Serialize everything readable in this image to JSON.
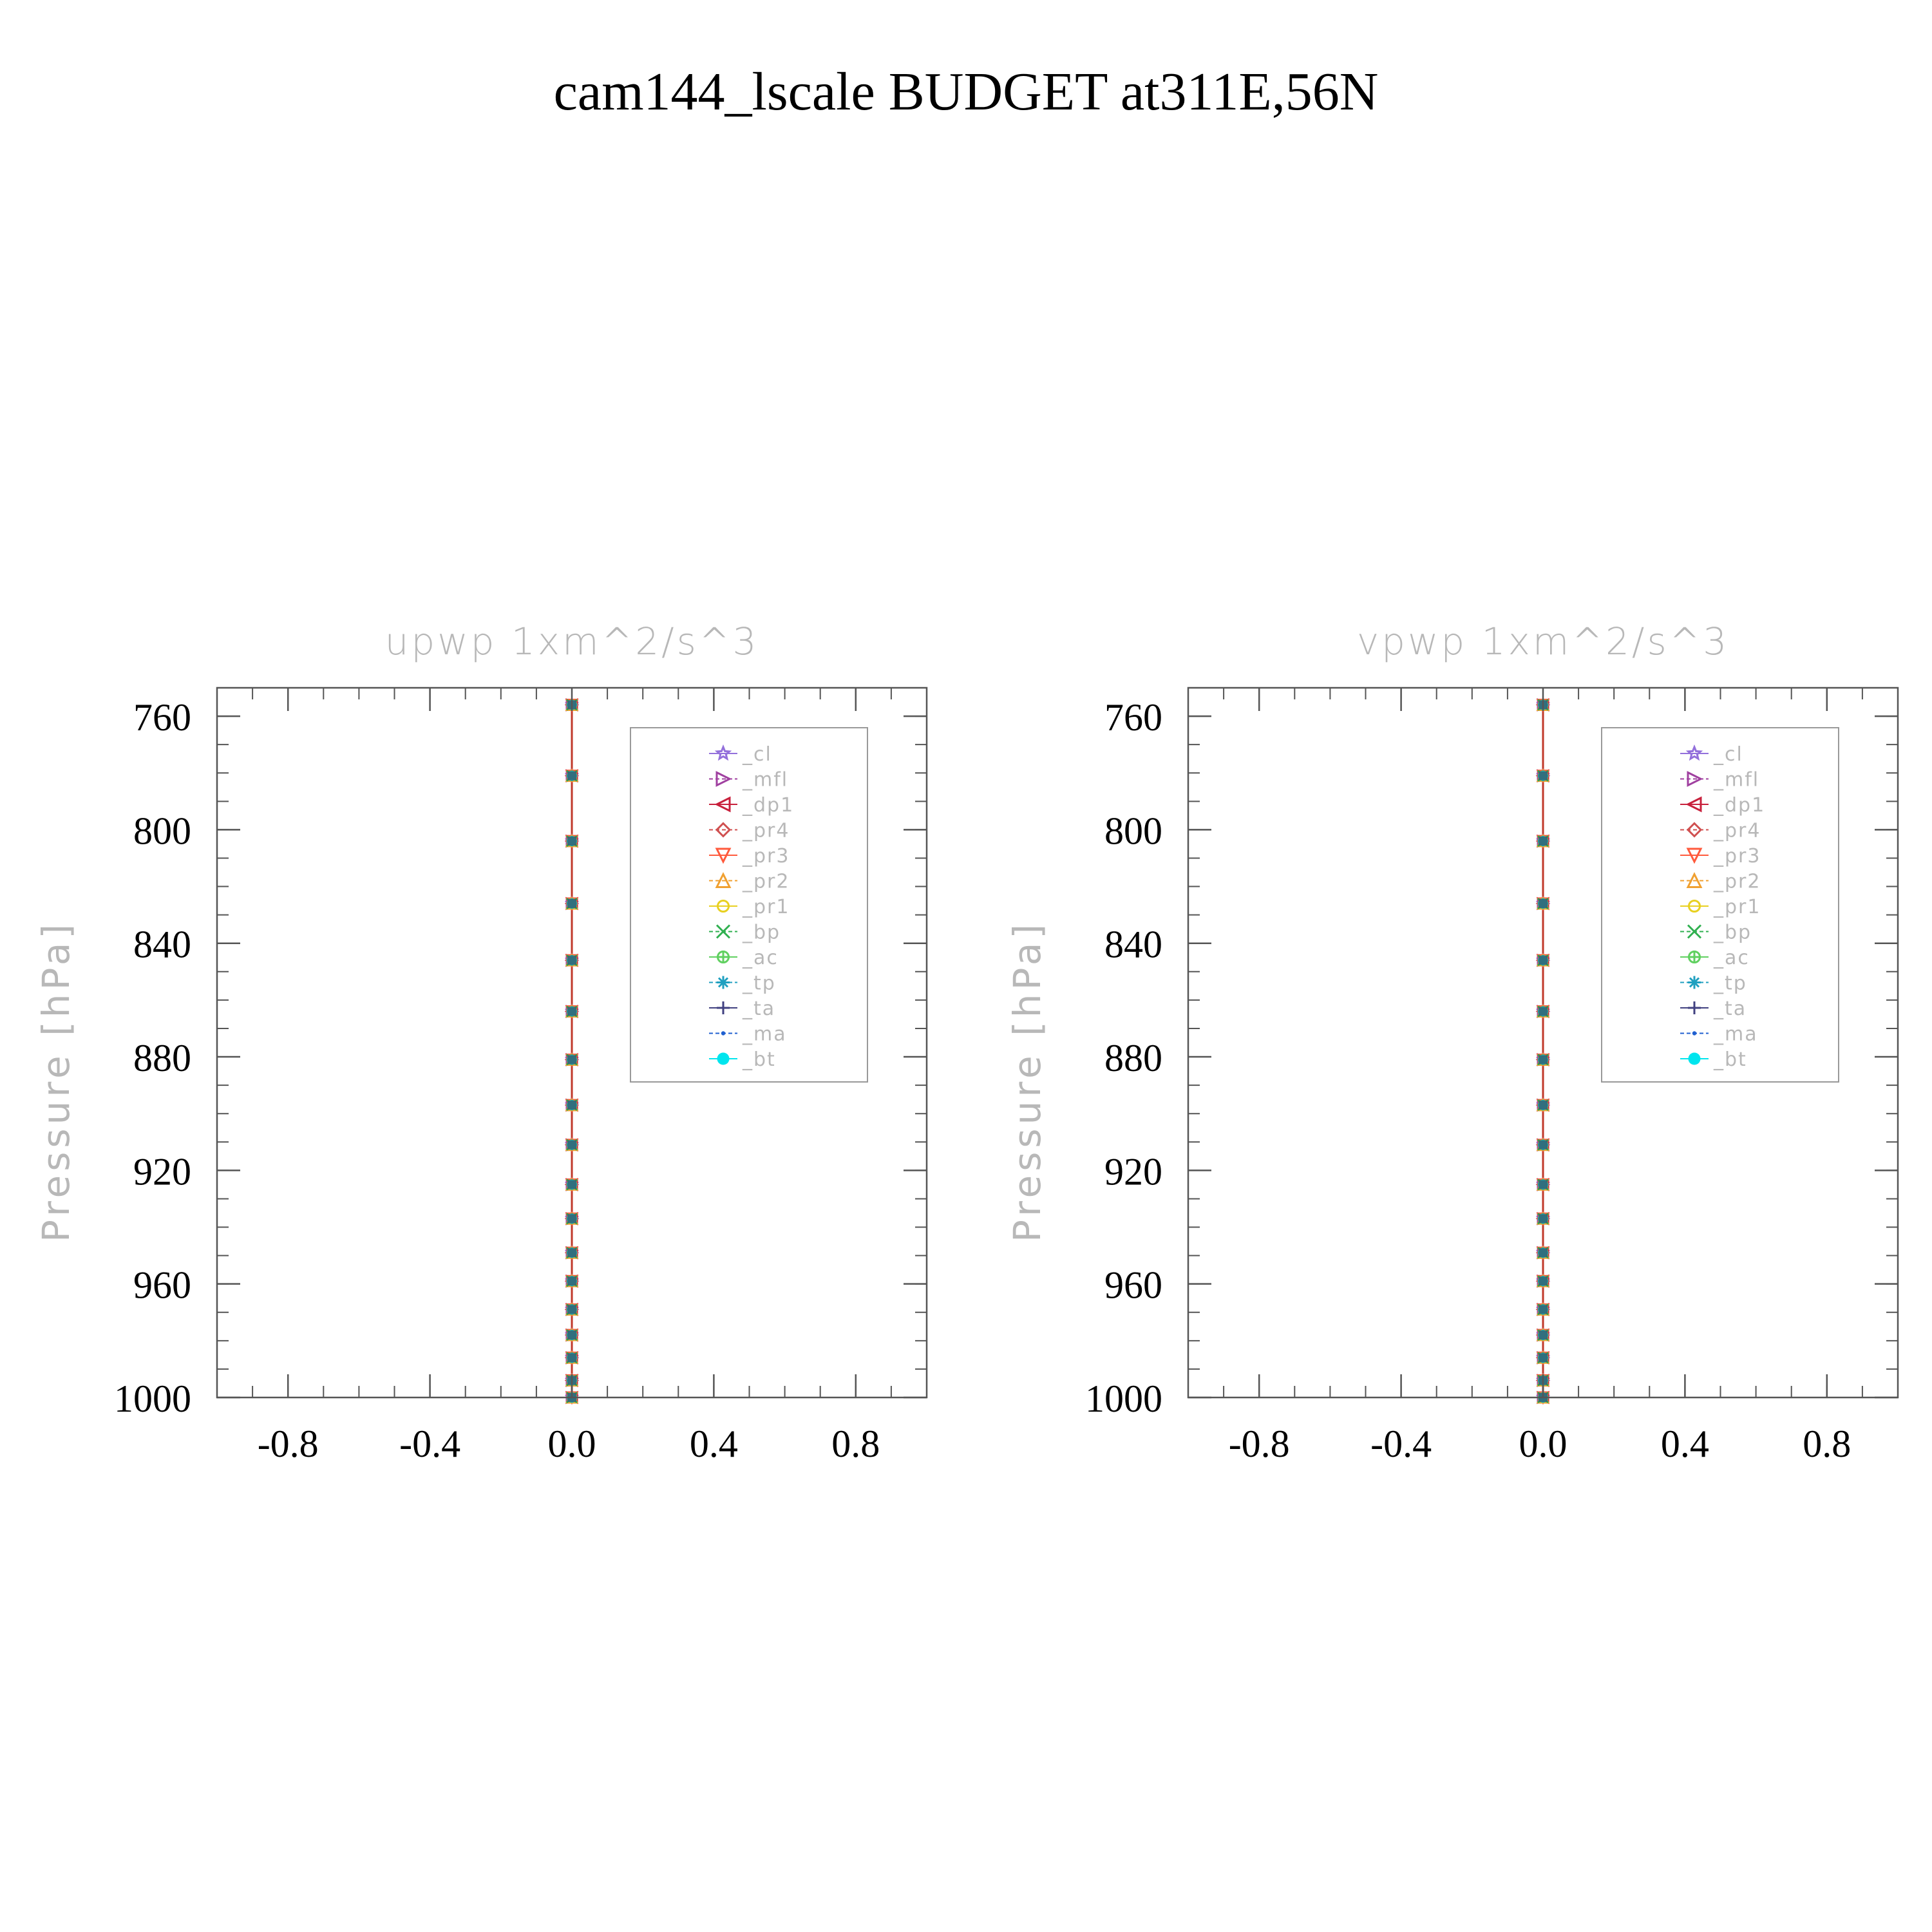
{
  "figure": {
    "title": "cam144_lscale  BUDGET at311E,56N"
  },
  "colors": {
    "axis": "#555555",
    "light_text": "#b8b8b8",
    "tick_label": "#000000",
    "zero_line": "#c0392b",
    "legend_border": "#999999"
  },
  "chart_data": [
    {
      "type": "line",
      "title": "upwp    1xm^2/s^3",
      "ylabel": "Pressure  [hPa]",
      "xlabel": "",
      "xlim": [
        -1.0,
        1.0
      ],
      "ylim": [
        1000,
        750
      ],
      "y_inverted": true,
      "grid": false,
      "legend_placement": "top-right",
      "xticks": [
        {
          "value": -0.8,
          "label": "-0.8"
        },
        {
          "value": -0.4,
          "label": "-0.4"
        },
        {
          "value": 0.0,
          "label": "0.0"
        },
        {
          "value": 0.4,
          "label": "0.4"
        },
        {
          "value": 0.8,
          "label": "0.8"
        }
      ],
      "yticks": [
        {
          "value": 760,
          "label": "760"
        },
        {
          "value": 800,
          "label": "800"
        },
        {
          "value": 840,
          "label": "840"
        },
        {
          "value": 880,
          "label": "880"
        },
        {
          "value": 920,
          "label": "920"
        },
        {
          "value": 960,
          "label": "960"
        },
        {
          "value": 1000,
          "label": "1000"
        }
      ],
      "levels": [
        756,
        781,
        804,
        826,
        846,
        864,
        881,
        897,
        911,
        925,
        937,
        949,
        959,
        969,
        978,
        986,
        994,
        1000
      ],
      "series": [
        {
          "name": "_cl",
          "color": "#9370db",
          "marker": "star",
          "value": 0.0
        },
        {
          "name": "_mfl",
          "color": "#a040a0",
          "marker": "triangle-right",
          "value": 0.0
        },
        {
          "name": "_dp1",
          "color": "#c8203c",
          "marker": "triangle-left",
          "value": 0.0
        },
        {
          "name": "_pr4",
          "color": "#d05050",
          "marker": "diamond",
          "value": 0.0
        },
        {
          "name": "_pr3",
          "color": "#ff5a3c",
          "marker": "triangle-down",
          "value": 0.0
        },
        {
          "name": "_pr2",
          "color": "#f0a030",
          "marker": "triangle-up",
          "value": 0.0
        },
        {
          "name": "_pr1",
          "color": "#e8d020",
          "marker": "circle-open",
          "value": 0.0
        },
        {
          "name": "_bp",
          "color": "#30b050",
          "marker": "x",
          "value": 0.0
        },
        {
          "name": "_ac",
          "color": "#60d060",
          "marker": "circle-cross",
          "value": 0.0
        },
        {
          "name": "_tp",
          "color": "#20a0c0",
          "marker": "asterisk",
          "value": 0.0
        },
        {
          "name": "_ta",
          "color": "#404080",
          "marker": "plus",
          "value": 0.0
        },
        {
          "name": "_ma",
          "color": "#2060d0",
          "marker": "dot",
          "value": 0.0
        },
        {
          "name": "_bt",
          "color": "#00e5ee",
          "marker": "filled-circle",
          "value": 0.0
        }
      ]
    },
    {
      "type": "line",
      "title": "vpwp    1xm^2/s^3",
      "ylabel": "Pressure  [hPa]",
      "xlabel": "",
      "xlim": [
        -1.0,
        1.0
      ],
      "ylim": [
        1000,
        750
      ],
      "y_inverted": true,
      "grid": false,
      "legend_placement": "top-right",
      "xticks": [
        {
          "value": -0.8,
          "label": "-0.8"
        },
        {
          "value": -0.4,
          "label": "-0.4"
        },
        {
          "value": 0.0,
          "label": "0.0"
        },
        {
          "value": 0.4,
          "label": "0.4"
        },
        {
          "value": 0.8,
          "label": "0.8"
        }
      ],
      "yticks": [
        {
          "value": 760,
          "label": "760"
        },
        {
          "value": 800,
          "label": "800"
        },
        {
          "value": 840,
          "label": "840"
        },
        {
          "value": 880,
          "label": "880"
        },
        {
          "value": 920,
          "label": "920"
        },
        {
          "value": 960,
          "label": "960"
        },
        {
          "value": 1000,
          "label": "1000"
        }
      ],
      "levels": [
        756,
        781,
        804,
        826,
        846,
        864,
        881,
        897,
        911,
        925,
        937,
        949,
        959,
        969,
        978,
        986,
        994,
        1000
      ],
      "series": [
        {
          "name": "_cl",
          "color": "#9370db",
          "marker": "star",
          "value": 0.0
        },
        {
          "name": "_mfl",
          "color": "#a040a0",
          "marker": "triangle-right",
          "value": 0.0
        },
        {
          "name": "_dp1",
          "color": "#c8203c",
          "marker": "triangle-left",
          "value": 0.0
        },
        {
          "name": "_pr4",
          "color": "#d05050",
          "marker": "diamond",
          "value": 0.0
        },
        {
          "name": "_pr3",
          "color": "#ff5a3c",
          "marker": "triangle-down",
          "value": 0.0
        },
        {
          "name": "_pr2",
          "color": "#f0a030",
          "marker": "triangle-up",
          "value": 0.0
        },
        {
          "name": "_pr1",
          "color": "#e8d020",
          "marker": "circle-open",
          "value": 0.0
        },
        {
          "name": "_bp",
          "color": "#30b050",
          "marker": "x",
          "value": 0.0
        },
        {
          "name": "_ac",
          "color": "#60d060",
          "marker": "circle-cross",
          "value": 0.0
        },
        {
          "name": "_tp",
          "color": "#20a0c0",
          "marker": "asterisk",
          "value": 0.0
        },
        {
          "name": "_ta",
          "color": "#404080",
          "marker": "plus",
          "value": 0.0
        },
        {
          "name": "_ma",
          "color": "#2060d0",
          "marker": "dot",
          "value": 0.0
        },
        {
          "name": "_bt",
          "color": "#00e5ee",
          "marker": "filled-circle",
          "value": 0.0
        }
      ]
    }
  ]
}
